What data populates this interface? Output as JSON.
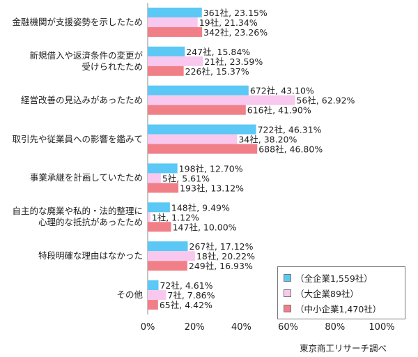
{
  "chart_data": {
    "type": "bar",
    "orientation": "horizontal",
    "categories": [
      "金融機関が支援姿勢を示したため",
      "新規借入や返済条件の変更が\n受けられたため",
      "経営改善の見込みがあったため",
      "取引先や従業員への影響を鑑みて",
      "事業承継を計画していたため",
      "自主的な廃業や私的・法的整理に\n心理的な抵抗があったため",
      "特段明確な理由はなかった",
      "その他"
    ],
    "series": [
      {
        "name": "（全企業1,559社）",
        "color": "#5bc8f5",
        "values": [
          23.15,
          15.84,
          43.1,
          46.31,
          12.7,
          9.49,
          17.12,
          4.61
        ],
        "labels": [
          "361社, 23.15%",
          "247社, 15.84%",
          "672社, 43.10%",
          "722社, 46.31%",
          "198社, 12.70%",
          "148社, 9.49%",
          "267社, 17.12%",
          "72社, 4.61%"
        ]
      },
      {
        "name": "（大企業89社）",
        "color": "#f9c8ef",
        "values": [
          21.34,
          23.59,
          62.92,
          38.2,
          5.61,
          1.12,
          20.22,
          7.86
        ],
        "labels": [
          "19社, 21.34%",
          "21社, 23.59%",
          "56社, 62.92%",
          "34社, 38.20%",
          "5社, 5.61%",
          "1社, 1.12%",
          "18社, 20.22%",
          "7社, 7.86%"
        ]
      },
      {
        "name": "（中小企業1,470社）",
        "color": "#f07f88",
        "values": [
          23.26,
          15.37,
          41.9,
          46.8,
          13.12,
          10.0,
          16.93,
          4.42
        ],
        "labels": [
          "342社, 23.26%",
          "226社, 15.37%",
          "616社, 41.90%",
          "688社, 46.80%",
          "193社, 13.12%",
          "147社, 10.00%",
          "249社, 16.93%",
          "65社, 4.42%"
        ]
      }
    ],
    "xlim": [
      0,
      100
    ],
    "x_ticks": [
      "0%",
      "20%",
      "40%",
      "60%",
      "80%",
      "100%"
    ],
    "grid": false,
    "legend_position": "bottom-right"
  },
  "source": "東京商工リサーチ調べ"
}
